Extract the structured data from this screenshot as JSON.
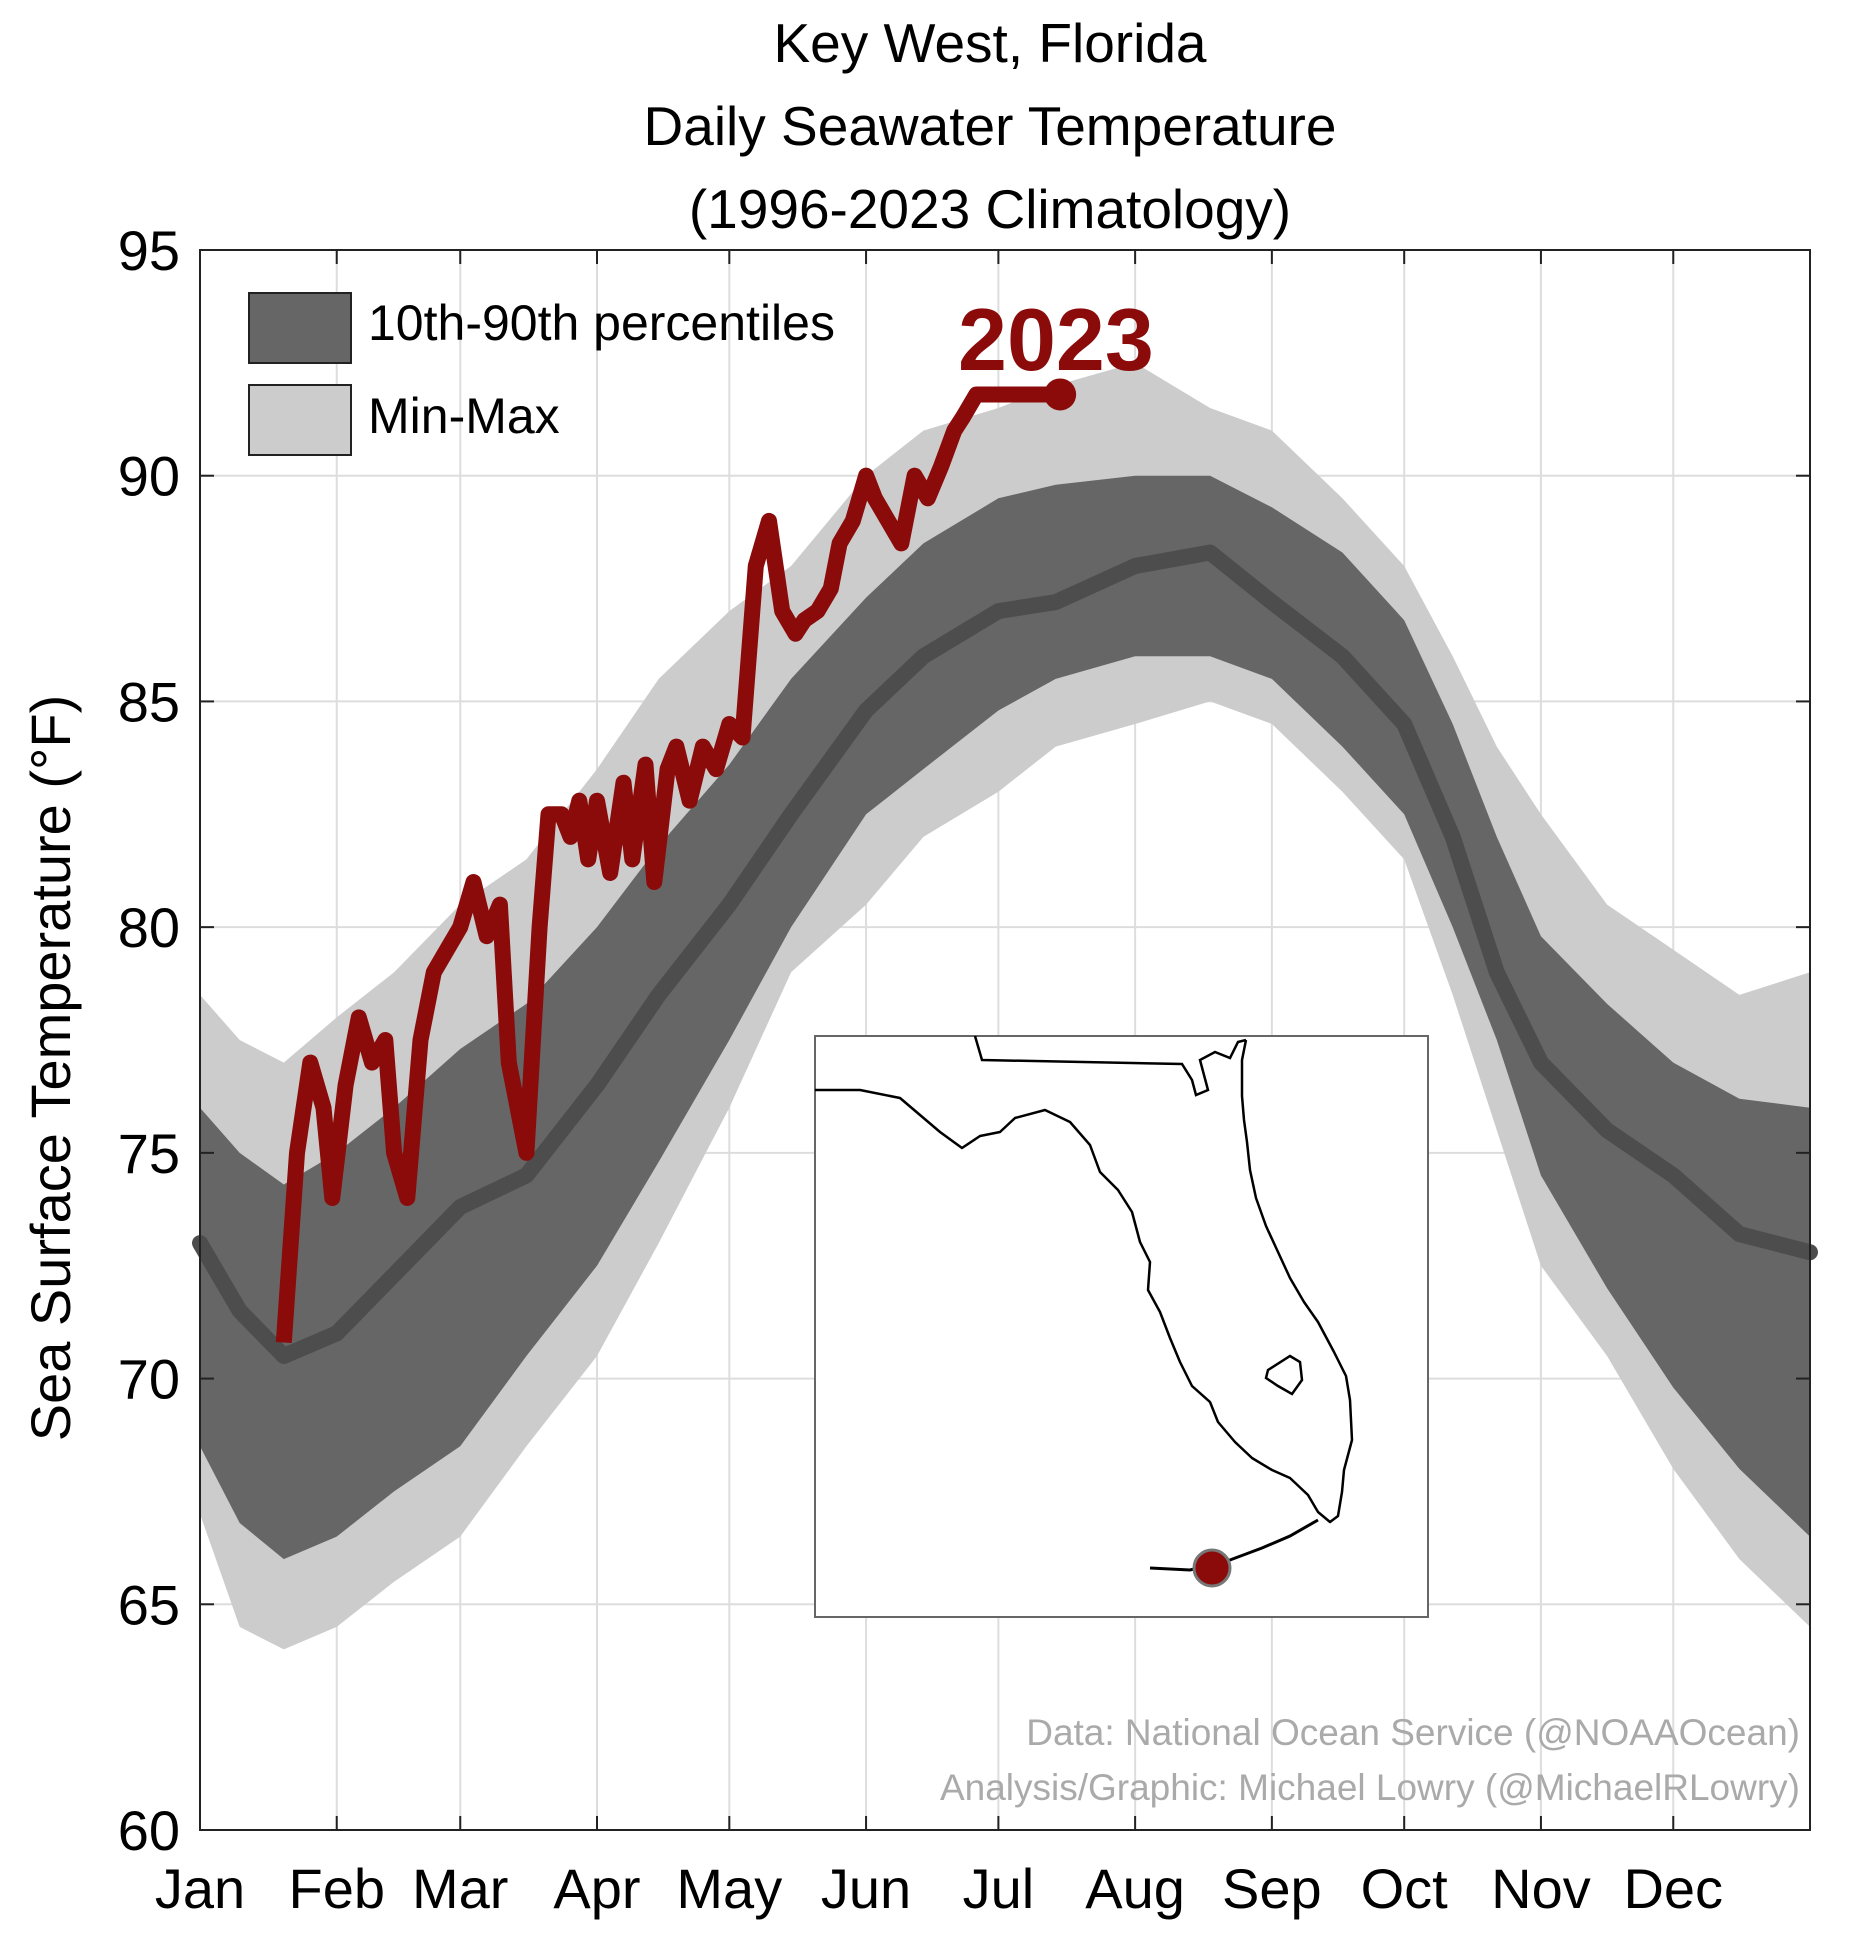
{
  "chart_data": {
    "type": "area",
    "title_lines": [
      "Key West, Florida",
      "Daily Seawater Temperature",
      "(1996-2023 Climatology)"
    ],
    "ylabel": "Sea Surface Temperature (°F)",
    "xlabel": "",
    "ylim": [
      60,
      95
    ],
    "yticks": [
      60,
      65,
      70,
      75,
      80,
      85,
      90,
      95
    ],
    "month_labels": [
      "Jan",
      "Feb",
      "Mar",
      "Apr",
      "May",
      "Jun",
      "Jul",
      "Aug",
      "Sep",
      "Oct",
      "Nov",
      "Dec"
    ],
    "month_start_day": [
      1,
      32,
      60,
      91,
      121,
      152,
      182,
      213,
      244,
      274,
      305,
      335
    ],
    "x_range_days": [
      1,
      366
    ],
    "grid": true,
    "legend_position": "top-left",
    "legend": [
      {
        "label": "10th-90th percentiles",
        "color": "#666666"
      },
      {
        "label": "Min-Max",
        "color": "#cccccc"
      }
    ],
    "year_label": "2023",
    "colors": {
      "minmax": "#cccccc",
      "p1090": "#666666",
      "median": "#4d4d4d",
      "year_line": "#8b0a0a"
    },
    "climatology": {
      "day": [
        1,
        10,
        20,
        32,
        45,
        60,
        75,
        91,
        105,
        121,
        135,
        152,
        165,
        182,
        195,
        213,
        230,
        244,
        260,
        274,
        285,
        295,
        305,
        320,
        335,
        350,
        366
      ],
      "min": [
        67.0,
        64.5,
        64.0,
        64.5,
        65.5,
        66.5,
        68.5,
        70.5,
        73.0,
        76.0,
        79.0,
        80.5,
        82.0,
        83.0,
        84.0,
        84.5,
        85.0,
        84.5,
        83.0,
        81.5,
        78.5,
        75.5,
        72.5,
        70.5,
        68.0,
        66.0,
        64.5
      ],
      "p10": [
        68.5,
        66.8,
        66.0,
        66.5,
        67.5,
        68.5,
        70.5,
        72.5,
        74.8,
        77.5,
        80.0,
        82.5,
        83.5,
        84.8,
        85.5,
        86.0,
        86.0,
        85.5,
        84.0,
        82.5,
        80.0,
        77.5,
        74.5,
        72.0,
        69.8,
        68.0,
        66.5
      ],
      "median": [
        73.0,
        71.5,
        70.5,
        71.0,
        72.3,
        73.8,
        74.5,
        76.5,
        78.5,
        80.5,
        82.5,
        84.8,
        86.0,
        87.0,
        87.2,
        88.0,
        88.3,
        87.2,
        86.0,
        84.5,
        82.0,
        79.0,
        77.0,
        75.5,
        74.5,
        73.2,
        72.8
      ],
      "p90": [
        76.0,
        75.0,
        74.3,
        75.0,
        76.0,
        77.3,
        78.3,
        80.0,
        81.8,
        83.6,
        85.5,
        87.3,
        88.5,
        89.5,
        89.8,
        90.0,
        90.0,
        89.3,
        88.3,
        86.8,
        84.5,
        82.0,
        79.8,
        78.3,
        77.0,
        76.2,
        76.0
      ],
      "max": [
        78.5,
        77.5,
        77.0,
        78.0,
        79.0,
        80.5,
        81.5,
        83.5,
        85.5,
        87.0,
        88.0,
        90.0,
        91.0,
        91.5,
        92.0,
        92.5,
        91.5,
        91.0,
        89.5,
        88.0,
        86.0,
        84.0,
        82.5,
        80.5,
        79.5,
        78.5,
        79.0
      ]
    },
    "series": [
      {
        "name": "2023",
        "day": [
          20,
          23,
          26,
          29,
          31,
          34,
          37,
          40,
          43,
          45,
          48,
          51,
          54,
          57,
          60,
          63,
          66,
          69,
          71,
          73,
          75,
          78,
          80,
          83,
          85,
          87,
          89,
          91,
          94,
          97,
          99,
          102,
          104,
          107,
          109,
          112,
          115,
          118,
          121,
          124,
          127,
          130,
          133,
          136,
          138,
          141,
          144,
          146,
          149,
          152,
          154,
          157,
          160,
          163,
          166,
          169,
          172,
          174,
          177,
          180,
          182,
          184,
          186,
          188,
          190,
          193,
          196
        ],
        "value": [
          70.8,
          75.0,
          77.0,
          76.0,
          74.0,
          76.5,
          78.0,
          77.0,
          77.5,
          75.0,
          74.0,
          77.5,
          79.0,
          79.5,
          80.0,
          81.0,
          79.8,
          80.5,
          77.0,
          76.0,
          75.0,
          80.0,
          82.5,
          82.5,
          82.0,
          82.8,
          81.5,
          82.8,
          81.2,
          83.2,
          81.5,
          83.6,
          81.0,
          83.5,
          84.0,
          82.8,
          84.0,
          83.5,
          84.5,
          84.2,
          88.0,
          89.0,
          87.0,
          86.5,
          86.8,
          87.0,
          87.5,
          88.5,
          89.0,
          90.0,
          89.5,
          89.0,
          88.5,
          90.0,
          89.5,
          90.2,
          91.0,
          91.3,
          91.8,
          91.8,
          91.8,
          91.8,
          91.8,
          91.8,
          91.8,
          91.8,
          91.8
        ]
      }
    ],
    "year_line_end": {
      "day": 196,
      "value": 91.8
    }
  },
  "inset_map": {
    "marker_location": "Key West",
    "marker_color": "#8b0a0a"
  },
  "credits": [
    "Data: National Ocean Service (@NOAAOcean)",
    "Analysis/Graphic: Michael Lowry (@MichaelRLowry)"
  ]
}
